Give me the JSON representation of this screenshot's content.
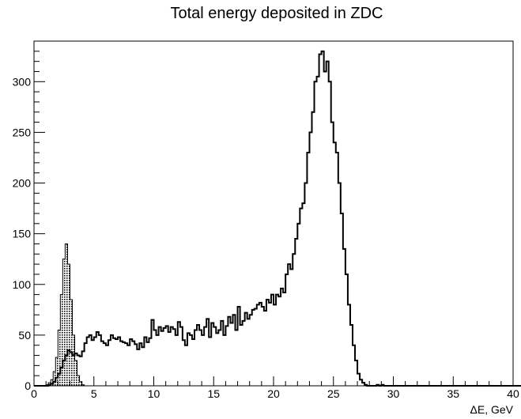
{
  "chart_data": {
    "type": "histogram",
    "title": "Total energy deposited in ZDC",
    "xlabel": "ΔE, GeV",
    "ylabel": "",
    "xlim": [
      0,
      40
    ],
    "ylim": [
      0,
      340
    ],
    "grid": false,
    "legend": "none",
    "x_ticks": [
      0,
      5,
      10,
      15,
      20,
      25,
      30,
      35,
      40
    ],
    "x_tick_labels": [
      "0",
      "5",
      "10",
      "15",
      "20",
      "25",
      "30",
      "35",
      "40"
    ],
    "y_ticks": [
      0,
      50,
      100,
      150,
      200,
      250,
      300
    ],
    "y_tick_labels": [
      "0",
      "50",
      "100",
      "150",
      "200",
      "250",
      "300"
    ],
    "series": [
      {
        "style": "outline",
        "color": "#000000",
        "bin_width": 0.2,
        "x_start": 0,
        "values": [
          0,
          0,
          0,
          0,
          0,
          0,
          1,
          2,
          4,
          8,
          12,
          18,
          25,
          30,
          35,
          33,
          30,
          32,
          30,
          29,
          34,
          42,
          48,
          50,
          45,
          48,
          53,
          50,
          44,
          42,
          40,
          45,
          50,
          47,
          46,
          48,
          44,
          43,
          42,
          40,
          46,
          44,
          41,
          36,
          42,
          38,
          48,
          43,
          47,
          65,
          55,
          50,
          58,
          54,
          57,
          59,
          53,
          58,
          56,
          50,
          63,
          58,
          45,
          40,
          52,
          50,
          46,
          55,
          60,
          55,
          50,
          58,
          66,
          48,
          62,
          58,
          52,
          55,
          64,
          50,
          59,
          68,
          62,
          70,
          55,
          78,
          60,
          64,
          72,
          66,
          70,
          75,
          76,
          80,
          82,
          78,
          74,
          85,
          82,
          90,
          80,
          90,
          88,
          96,
          92,
          110,
          120,
          115,
          130,
          145,
          160,
          175,
          180,
          200,
          230,
          250,
          270,
          300,
          305,
          327,
          330,
          310,
          320,
          300,
          260,
          240,
          230,
          200,
          170,
          135,
          110,
          80,
          60,
          40,
          25,
          12,
          6,
          3,
          1,
          0,
          0,
          0,
          0,
          1,
          0,
          1,
          0,
          0,
          0,
          0,
          0,
          0,
          0,
          0,
          0,
          0,
          0,
          0,
          0,
          0,
          0,
          0,
          0,
          0,
          0,
          0,
          0,
          0,
          0,
          0,
          0,
          0,
          0,
          0,
          0,
          0,
          0,
          0,
          0,
          0,
          0,
          0,
          0,
          0,
          0,
          0,
          0,
          0,
          0,
          0,
          0,
          0,
          0,
          0,
          0,
          0,
          0,
          0,
          0,
          0,
          0,
          0,
          0,
          0,
          0
        ]
      },
      {
        "style": "filled-hatched",
        "color": "#000000",
        "bin_width": 0.2,
        "x_start": 1.0,
        "values": [
          1,
          3,
          6,
          14,
          28,
          55,
          90,
          125,
          140,
          120,
          85,
          50,
          25,
          10,
          4,
          1,
          0
        ]
      }
    ]
  }
}
